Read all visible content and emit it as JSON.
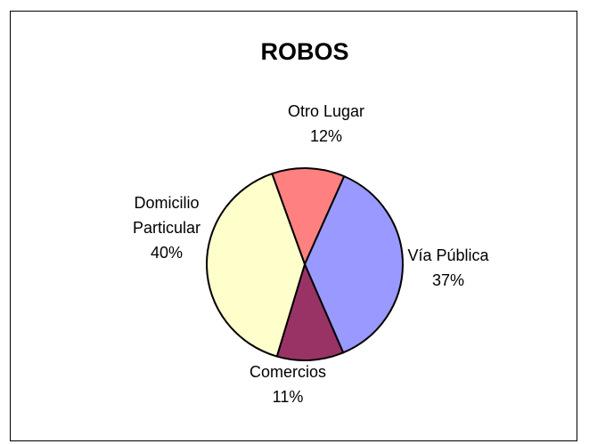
{
  "chart_data": {
    "type": "pie",
    "title": "ROBOS",
    "slices": [
      {
        "label": "Otro Lugar",
        "label_lines": [
          "Otro Lugar"
        ],
        "pct_label": "12%",
        "value": 12,
        "color": "#ff8080"
      },
      {
        "label": "Vía Pública",
        "label_lines": [
          "Vía Pública"
        ],
        "pct_label": "37%",
        "value": 37,
        "color": "#9999ff"
      },
      {
        "label": "Comercios",
        "label_lines": [
          "Comercios"
        ],
        "pct_label": "11%",
        "value": 11,
        "color": "#993366"
      },
      {
        "label": "Domicilio Particular",
        "label_lines": [
          "Domicilio",
          "Particular"
        ],
        "pct_label": "40%",
        "value": 40,
        "color": "#ffffcc"
      }
    ],
    "legend": "none",
    "outline_color": "#000000"
  }
}
